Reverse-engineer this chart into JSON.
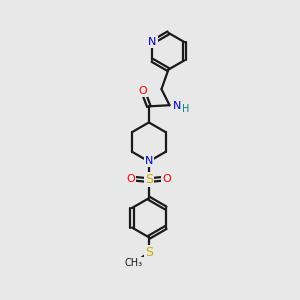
{
  "background_color": "#e8e8e8",
  "bond_color": "#1a1a1a",
  "atom_colors": {
    "O": "#ff0000",
    "N": "#0000cc",
    "S": "#ccaa00",
    "H": "#008080",
    "C": "#1a1a1a"
  },
  "figsize": [
    3.0,
    3.0
  ],
  "dpi": 100,
  "bg_hex": "#e8e8e8"
}
